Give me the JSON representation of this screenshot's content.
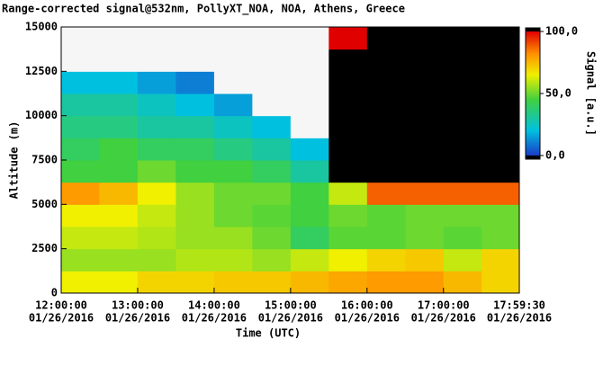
{
  "chart_data": {
    "type": "heatmap",
    "title": "Range-corrected signal@532nm, PollyXT_NOA, NOA, Athens, Greece",
    "x_label": "Time (UTC)",
    "y_label": "Altitude (m)",
    "colorbar_label": "Signal [a.u.]",
    "xbins": [
      "2016-01-26T12:00:00",
      "2016-01-26T12:30:00",
      "2016-01-26T13:00:00",
      "2016-01-26T13:30:00",
      "2016-01-26T14:00:00",
      "2016-01-26T14:30:00",
      "2016-01-26T15:00:00",
      "2016-01-26T15:30:00",
      "2016-01-26T16:00:00",
      "2016-01-26T16:30:00",
      "2016-01-26T17:00:00",
      "2016-01-26T17:30:00",
      "2016-01-26T17:59:30"
    ],
    "ybins": [
      0,
      1250,
      2500,
      3750,
      5000,
      6250,
      7500,
      8750,
      10000,
      11250,
      12500,
      13750,
      15000
    ],
    "z": [
      [
        65,
        65,
        70,
        70,
        72,
        72,
        75,
        78,
        80,
        80,
        75,
        70
      ],
      [
        55,
        55,
        55,
        58,
        58,
        55,
        60,
        65,
        70,
        72,
        60,
        70
      ],
      [
        60,
        60,
        58,
        55,
        55,
        50,
        40,
        48,
        48,
        50,
        48,
        50
      ],
      [
        65,
        65,
        60,
        55,
        50,
        48,
        45,
        50,
        48,
        50,
        50,
        50
      ],
      [
        80,
        75,
        65,
        55,
        50,
        50,
        45,
        60,
        88,
        88,
        88,
        88
      ],
      [
        45,
        45,
        50,
        45,
        45,
        40,
        30,
        110,
        120,
        110,
        120,
        115
      ],
      [
        40,
        45,
        40,
        40,
        35,
        30,
        20,
        115,
        120,
        115,
        120,
        115
      ],
      [
        35,
        35,
        30,
        30,
        25,
        20,
        -5,
        110,
        120,
        110,
        120,
        110
      ],
      [
        30,
        30,
        25,
        20,
        15,
        -5,
        -5,
        110,
        120,
        110,
        115,
        110
      ],
      [
        20,
        20,
        15,
        10,
        -5,
        -5,
        -5,
        105,
        120,
        110,
        115,
        110
      ],
      [
        -5,
        -5,
        -5,
        -5,
        -5,
        -5,
        -5,
        105,
        120,
        105,
        115,
        110
      ],
      [
        -5,
        -5,
        -5,
        -5,
        -5,
        -5,
        -5,
        100,
        115,
        105,
        110,
        110
      ]
    ],
    "xlim": [
      "2016-01-26T12:00:00",
      "2016-01-26T17:59:30"
    ],
    "xticks": [
      {
        "value": "2016-01-26T12:00:00",
        "label": [
          "12:00:00",
          "01/26/2016"
        ]
      },
      {
        "value": "2016-01-26T13:00:00",
        "label": [
          "13:00:00",
          "01/26/2016"
        ]
      },
      {
        "value": "2016-01-26T14:00:00",
        "label": [
          "14:00:00",
          "01/26/2016"
        ]
      },
      {
        "value": "2016-01-26T15:00:00",
        "label": [
          "15:00:00",
          "01/26/2016"
        ]
      },
      {
        "value": "2016-01-26T16:00:00",
        "label": [
          "16:00:00",
          "01/26/2016"
        ]
      },
      {
        "value": "2016-01-26T17:00:00",
        "label": [
          "17:00:00",
          "01/26/2016"
        ]
      },
      {
        "value": "2016-01-26T17:59:30",
        "label": [
          "17:59:30",
          "01/26/2016"
        ]
      }
    ],
    "ylim": [
      0,
      15000
    ],
    "yticks": [
      0,
      2500,
      5000,
      7500,
      10000,
      12500,
      15000
    ],
    "zlim": [
      0,
      100
    ],
    "zticks": [
      {
        "value": 0,
        "label": "0,0"
      },
      {
        "value": 50,
        "label": "50,0"
      },
      {
        "value": 100,
        "label": "100,0"
      }
    ]
  }
}
